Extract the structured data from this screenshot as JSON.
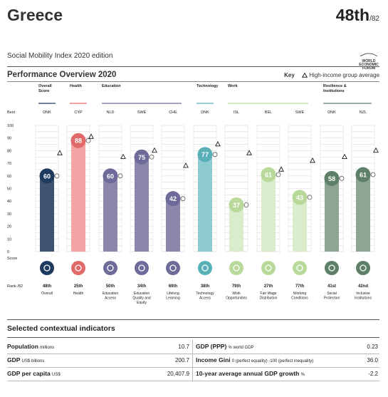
{
  "header": {
    "country": "Greece",
    "rank": "48th",
    "rank_total": "/82",
    "edition": "Social Mobility Index 2020 edition",
    "logo_text": [
      "WORLD",
      "ECONOMIC",
      "FORUM"
    ]
  },
  "performance": {
    "title": "Performance Overview 2020",
    "key_label": "Key",
    "key_text": "High-income group average"
  },
  "chart_data": {
    "type": "bar",
    "y_axis_label": "Score",
    "best_label": "Best",
    "rank_label": "Rank /82",
    "ylim": [
      0,
      100
    ],
    "yticks": [
      0,
      10,
      20,
      30,
      40,
      50,
      60,
      70,
      80,
      90,
      100
    ],
    "groups": [
      {
        "label": "Overall Score",
        "color": "#1f3a5f"
      },
      {
        "label": "Health",
        "color": "#e36b6b"
      },
      {
        "label": "Education",
        "color": "#6e6a99"
      },
      {
        "label": "Technology",
        "color": "#5bb0b8"
      },
      {
        "label": "Work",
        "color": "#b9d99a"
      },
      {
        "label": "Resilience & Institutions",
        "color": "#5e7f68"
      }
    ],
    "pillars": [
      {
        "group": 0,
        "best": "DNK",
        "value": 60,
        "hi_avg": 75,
        "rank": "48th",
        "name": "Overall",
        "bar": "#3f5470",
        "bubble": "#1f3a5f",
        "icon_bg": "#1f3a5f",
        "icon": "target-icon"
      },
      {
        "group": 1,
        "best": "CYP",
        "value": 88,
        "hi_avg": 88,
        "rank": "25th",
        "name": "Health",
        "bar": "#f2a3a3",
        "bubble": "#e06a6a",
        "icon_bg": "#e06a6a",
        "icon": "health-cross-icon"
      },
      {
        "group": 2,
        "best": "NLD",
        "value": 60,
        "hi_avg": 72,
        "rank": "50th",
        "name": "Education Access",
        "bar": "#8a87aa",
        "bubble": "#6e6a99",
        "icon_bg": "#6e6a99",
        "icon": "graduation-cap-icon"
      },
      {
        "group": 2,
        "best": "SWE",
        "value": 75,
        "hi_avg": 77,
        "rank": "34th",
        "name": "Education Quality and Equity",
        "bar": "#8a87aa",
        "bubble": "#6e6a99",
        "icon_bg": "#6e6a99",
        "icon": "medal-icon"
      },
      {
        "group": 2,
        "best": "CHE",
        "value": 42,
        "hi_avg": 65,
        "rank": "69th",
        "name": "Lifelong Learning",
        "bar": "#8a87aa",
        "bubble": "#6e6a99",
        "icon_bg": "#6e6a99",
        "icon": "book-icon"
      },
      {
        "group": 3,
        "best": "DNK",
        "value": 77,
        "hi_avg": 82,
        "rank": "38th",
        "name": "Technology Access",
        "bar": "#8ecbd0",
        "bubble": "#5bb0b8",
        "icon_bg": "#5bb0b8",
        "icon": "network-icon"
      },
      {
        "group": 4,
        "best": "ISL",
        "value": 37,
        "hi_avg": 75,
        "rank": "79th",
        "name": "Work Opportunities",
        "bar": "#d9eccb",
        "bubble": "#b9d99a",
        "icon_bg": "#b9d99a",
        "icon": "wrench-icon"
      },
      {
        "group": 4,
        "best": "BEL",
        "value": 61,
        "hi_avg": 62,
        "rank": "27th",
        "name": "Fair Wage Distribution",
        "bar": "#d9eccb",
        "bubble": "#b9d99a",
        "icon_bg": "#b9d99a",
        "icon": "coin-icon"
      },
      {
        "group": 4,
        "best": "SWE",
        "value": 43,
        "hi_avg": 69,
        "rank": "77th",
        "name": "Working Conditions",
        "bar": "#d9eccb",
        "bubble": "#b9d99a",
        "icon_bg": "#b9d99a",
        "icon": "clipboard-icon"
      },
      {
        "group": 5,
        "best": "DNK",
        "value": 58,
        "hi_avg": 72,
        "rank": "41st",
        "name": "Social Protection",
        "bar": "#8ea594",
        "bubble": "#5e7f68",
        "icon_bg": "#5e7f68",
        "icon": "family-icon"
      },
      {
        "group": 5,
        "best": "NZL",
        "value": 61,
        "hi_avg": 77,
        "rank": "42nd",
        "name": "Inclusive Institutions",
        "bar": "#8ea594",
        "bubble": "#5e7f68",
        "icon_bg": "#5e7f68",
        "icon": "institutions-icon"
      }
    ]
  },
  "context": {
    "title": "Selected contextual indicators",
    "rows": [
      {
        "left": {
          "label": "Population",
          "unit": "millions",
          "value": "10.7"
        },
        "right": {
          "label": "GDP (PPP)",
          "unit": "% world GDP",
          "value": "0.23"
        }
      },
      {
        "left": {
          "label": "GDP",
          "unit": "US$ billions",
          "value": "200.7"
        },
        "right": {
          "label": "Income Gini",
          "unit": "0 (perfect equality) -100 (perfect inequality)",
          "value": "36.0"
        }
      },
      {
        "left": {
          "label": "GDP per capita",
          "unit": "US$",
          "value": "20,407.9"
        },
        "right": {
          "label": "10-year average annual GDP growth",
          "unit": "%",
          "value": "-2.2"
        }
      }
    ]
  }
}
